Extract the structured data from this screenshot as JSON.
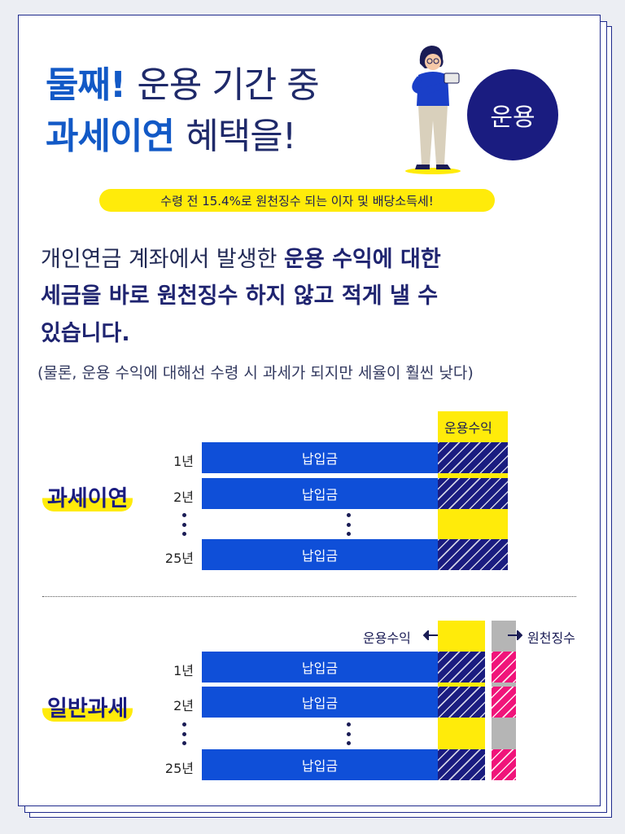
{
  "title": {
    "line1_accent": "둘째!",
    "line1_rest": "운용 기간 중",
    "line2_accent": "과세이연",
    "line2_rest": "혜택을!"
  },
  "badge": "운용",
  "highlight_pill": "수령 전 15.4%로 원천징수 되는 이자 및 배당소득세!",
  "body": {
    "line1_normal": "개인연금 계좌에서 발생한",
    "line1_bold": "운용 수익에 대한",
    "line2_bold": "세금을 바로 원천징수 하지 않고 적게 낼 수",
    "line3_bold": "있습니다."
  },
  "note": "(물론, 운용 수익에 대해선 수령 시 과세가 되지만 세율이 훨씬 낮다)",
  "deferred": {
    "group_label": "과세이연",
    "column_header": "운용수익",
    "rows": [
      {
        "year": "1년",
        "bar": "납입금"
      },
      {
        "year": "2년",
        "bar": "납입금"
      },
      {
        "year": "25년",
        "bar": "납입금"
      }
    ]
  },
  "general": {
    "group_label": "일반과세",
    "column_header_left": "운용수익",
    "column_header_right": "원천징수",
    "rows": [
      {
        "year": "1년",
        "bar": "납입금"
      },
      {
        "year": "2년",
        "bar": "납입금"
      },
      {
        "year": "25년",
        "bar": "납입금"
      }
    ]
  },
  "colors": {
    "navy": "#1a1c80",
    "blue": "#0f4fd8",
    "accent_blue": "#1259c6",
    "yellow": "#ffeb0a",
    "pink": "#f0147a",
    "gray": "#b5b5b5"
  }
}
